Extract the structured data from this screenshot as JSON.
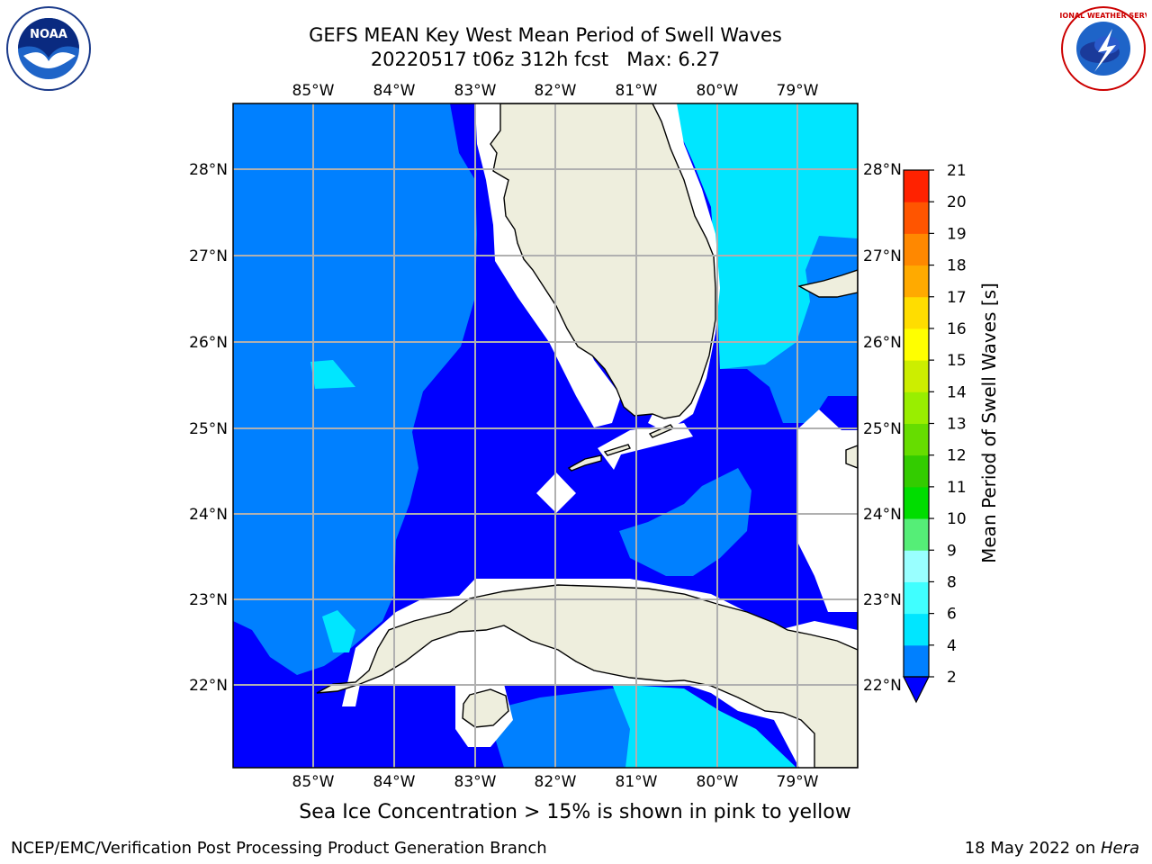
{
  "header": {
    "title_line1": "GEFS MEAN Key West Mean Period of Swell Waves",
    "title_line2": "20220517 t06z 312h fcst   Max: 6.27"
  },
  "logos": {
    "left": {
      "icon": "noaa-logo",
      "text": "NOAA"
    },
    "right": {
      "icon": "nws-logo",
      "text": "NATIONAL WEATHER SERVICE"
    }
  },
  "map": {
    "longitude_labels": [
      "85°W",
      "84°W",
      "83°W",
      "82°W",
      "81°W",
      "80°W",
      "79°W"
    ],
    "latitude_labels": [
      "28°N",
      "27°N",
      "26°N",
      "25°N",
      "24°N",
      "23°N",
      "22°N"
    ],
    "region": "Key West / South Florida / Cuba",
    "colors": {
      "land": "#eeeedd",
      "no_data": "#ffffff",
      "coast": "#000000",
      "grid": "#b0b0b0"
    }
  },
  "colorbar": {
    "label": "Mean Period of Swell Waves [s]",
    "ticks": [
      "2",
      "4",
      "6",
      "8",
      "9",
      "10",
      "11",
      "12",
      "13",
      "14",
      "15",
      "16",
      "17",
      "18",
      "19",
      "20",
      "21"
    ],
    "colors_bottom_to_top": [
      "#0000ff",
      "#0080ff",
      "#00e6ff",
      "#40ffff",
      "#99ffff",
      "#55ee77",
      "#00dd00",
      "#33cc00",
      "#66dd00",
      "#99ee00",
      "#ccee00",
      "#ffff00",
      "#ffdd00",
      "#ffaa00",
      "#ff8800",
      "#ff5500",
      "#ff2200",
      "#ff0000"
    ],
    "extend": "min"
  },
  "footer": {
    "ice_note": "Sea Ice Concentration > 15% is shown in pink to yellow",
    "credit": "NCEP/EMC/Verification Post Processing Product Generation Branch",
    "date": "18 May 2022 on ",
    "host": "Hera"
  }
}
